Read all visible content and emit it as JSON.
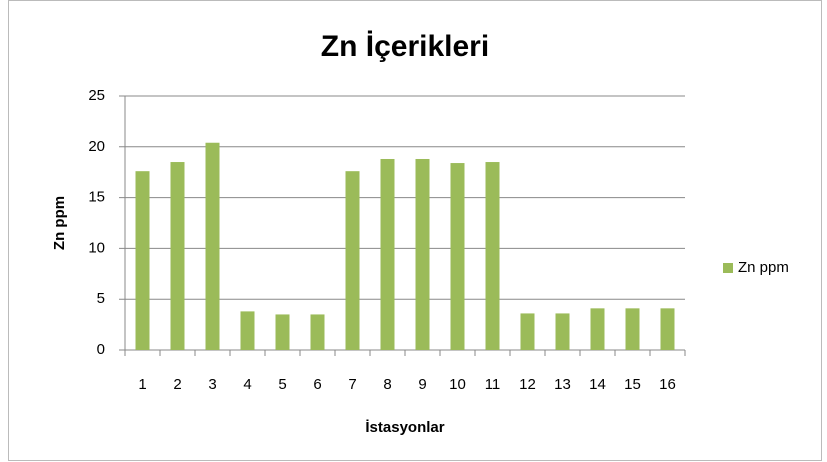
{
  "chart_data": {
    "type": "bar",
    "title": "Zn İçerikleri",
    "x_label": "İstasyonlar",
    "y_label": "Zn ppm",
    "categories": [
      "1",
      "2",
      "3",
      "4",
      "5",
      "6",
      "7",
      "8",
      "9",
      "10",
      "11",
      "12",
      "13",
      "14",
      "15",
      "16"
    ],
    "series": [
      {
        "name": "Zn ppm",
        "color": "#9bbb59",
        "values": [
          17.6,
          18.5,
          20.4,
          3.8,
          3.5,
          3.5,
          17.6,
          18.8,
          18.8,
          18.4,
          18.5,
          3.6,
          3.6,
          4.1,
          4.1,
          4.1
        ]
      }
    ],
    "ylim": [
      0,
      25
    ],
    "yticks": [
      0,
      5,
      10,
      15,
      20,
      25
    ],
    "grid": true,
    "legend": "right"
  }
}
